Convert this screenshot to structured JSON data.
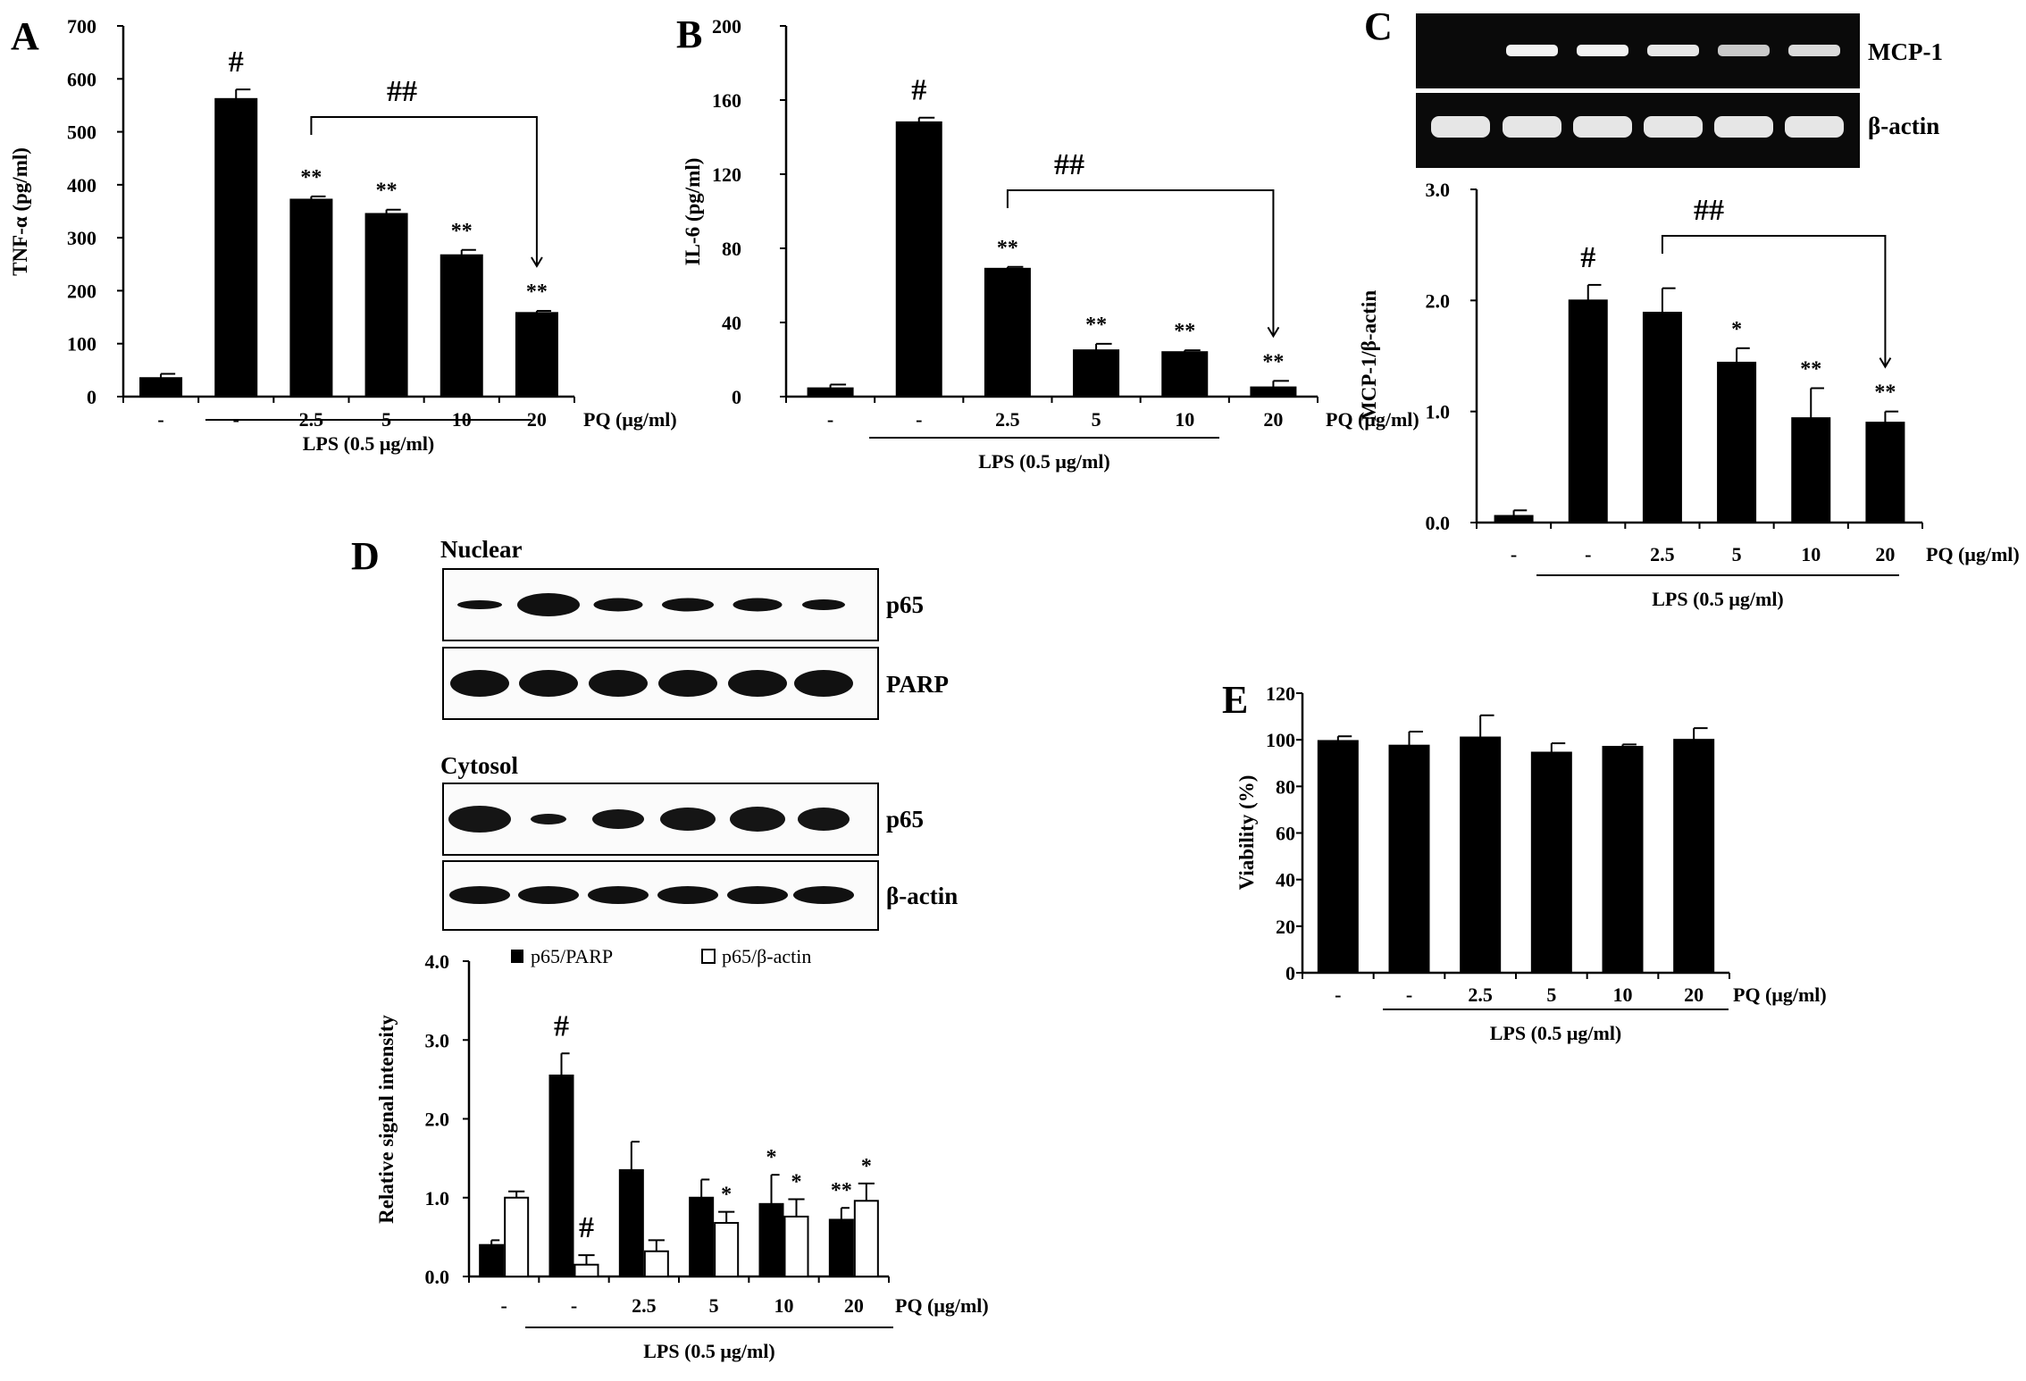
{
  "panels": {
    "a": {
      "label": "A"
    },
    "b": {
      "label": "B"
    },
    "c": {
      "label": "C"
    },
    "d": {
      "label": "D"
    },
    "e": {
      "label": "E"
    }
  },
  "blots": {
    "c_mcp1": "MCP-1",
    "c_actin": "β-actin",
    "d_nuclear": "Nuclear",
    "d_cytosol": "Cytosol",
    "d_p65_nuc": "p65",
    "d_parp": "PARP",
    "d_p65_cyt": "p65",
    "d_actin": "β-actin"
  },
  "chart_data": [
    {
      "id": "A",
      "type": "bar",
      "categories": [
        "-",
        "-",
        "2.5",
        "5",
        "10",
        "20"
      ],
      "values": [
        35,
        562,
        372,
        345,
        267,
        158
      ],
      "errors": [
        8,
        18,
        6,
        8,
        10,
        4
      ],
      "annotations": [
        "",
        "#",
        "**",
        "**",
        "**",
        "**"
      ],
      "bracket_label": "##",
      "ylabel": "TNF-α (pg/ml)",
      "ylim": [
        0,
        700
      ],
      "yticks": [
        "0",
        "100",
        "200",
        "300",
        "400",
        "500",
        "600",
        "700"
      ],
      "xunit": "PQ (μg/ml)",
      "group_label": "LPS (0.5 μg/ml)"
    },
    {
      "id": "B",
      "type": "bar",
      "categories": [
        "-",
        "-",
        "2.5",
        "5",
        "10",
        "20"
      ],
      "values": [
        4.5,
        148,
        69,
        25,
        24,
        5
      ],
      "errors": [
        2,
        2.5,
        1,
        3.5,
        1,
        3.5
      ],
      "annotations": [
        "",
        "#",
        "**",
        "**",
        "**",
        "**"
      ],
      "bracket_label": "##",
      "ylabel": "IL-6 (pg/ml)",
      "ylim": [
        0,
        200
      ],
      "yticks": [
        "0",
        "40",
        "80",
        "120",
        "160",
        "200"
      ],
      "xunit": "PQ (μg/ml)",
      "group_label": "LPS (0.5 μg/ml)"
    },
    {
      "id": "C",
      "type": "bar",
      "categories": [
        "-",
        "-",
        "2.5",
        "5",
        "10",
        "20"
      ],
      "values": [
        0.06,
        2.0,
        1.89,
        1.44,
        0.94,
        0.9
      ],
      "errors": [
        0.05,
        0.14,
        0.22,
        0.13,
        0.27,
        0.1
      ],
      "annotations": [
        "",
        "#",
        "",
        "*",
        "**",
        "**"
      ],
      "bracket_label": "##",
      "ylabel": "MCP-1/β-actin",
      "ylim": [
        0,
        3.0
      ],
      "yticks": [
        "0.0",
        "1.0",
        "2.0",
        "3.0"
      ],
      "xunit": "PQ (μg/ml)",
      "group_label": "LPS (0.5 μg/ml)"
    },
    {
      "id": "D",
      "type": "bar",
      "categories": [
        "-",
        "-",
        "2.5",
        "5",
        "10",
        "20"
      ],
      "series": [
        {
          "name": "p65/PARP",
          "color": "#000000",
          "values": [
            0.4,
            2.55,
            1.35,
            1.0,
            0.92,
            0.72
          ],
          "errors": [
            0.06,
            0.28,
            0.36,
            0.23,
            0.37,
            0.15
          ],
          "annotations": [
            "",
            "#",
            "",
            "",
            "*",
            "**"
          ]
        },
        {
          "name": "p65/β-actin",
          "color": "#ffffff",
          "values": [
            1.0,
            0.15,
            0.32,
            0.68,
            0.76,
            0.96
          ],
          "errors": [
            0.08,
            0.12,
            0.14,
            0.14,
            0.22,
            0.22
          ],
          "annotations": [
            "",
            "#",
            "",
            "*",
            "*",
            "*"
          ]
        }
      ],
      "ylabel": "Relative signal intensity",
      "ylim": [
        0,
        4.0
      ],
      "yticks": [
        "0.0",
        "1.0",
        "2.0",
        "3.0",
        "4.0"
      ],
      "xunit": "PQ (μg/ml)",
      "group_label": "LPS (0.5 μg/ml)"
    },
    {
      "id": "E",
      "type": "bar",
      "categories": [
        "-",
        "-",
        "2.5",
        "5",
        "10",
        "20"
      ],
      "values": [
        99.5,
        97.5,
        101,
        94.5,
        97,
        100
      ],
      "errors": [
        2,
        6,
        9.5,
        4,
        1,
        5
      ],
      "annotations": [
        "",
        "",
        "",
        "",
        "",
        ""
      ],
      "ylabel": "Viability (%)",
      "ylim": [
        0,
        120
      ],
      "yticks": [
        "0",
        "20",
        "40",
        "60",
        "80",
        "100",
        "120"
      ],
      "xunit": "PQ (μg/ml)",
      "group_label": "LPS (0.5 μg/ml)"
    }
  ]
}
